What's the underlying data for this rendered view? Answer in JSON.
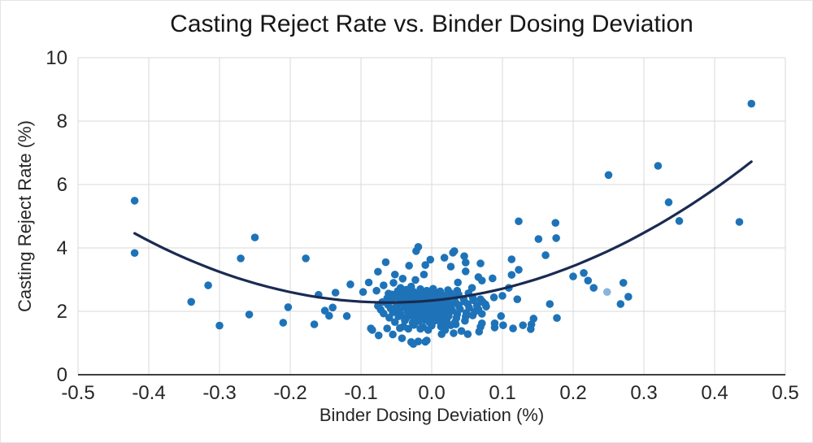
{
  "chart_data": {
    "type": "scatter",
    "title": "Casting Reject Rate vs. Binder Dosing Deviation",
    "xlabel": "Binder Dosing Deviation (%)",
    "ylabel": "Casting Reject Rate (%)",
    "xlim": [
      -0.5,
      0.5
    ],
    "ylim": [
      0,
      10
    ],
    "x_ticks": [
      -0.5,
      -0.4,
      -0.3,
      -0.2,
      -0.1,
      0.0,
      0.1,
      0.2,
      0.3,
      0.4,
      0.5
    ],
    "x_tick_labels": [
      "-0.5",
      "-0.4",
      "-0.3",
      "-0.2",
      "-0.1",
      "0.0",
      "0.1",
      "0.2",
      "0.3",
      "0.4",
      "0.5"
    ],
    "y_ticks": [
      0,
      2,
      4,
      6,
      8,
      10
    ],
    "y_tick_labels": [
      "0",
      "2",
      "4",
      "6",
      "8",
      "10"
    ],
    "grid": true,
    "legend": "none",
    "marker_color": "#1e73b8",
    "marker_color_light": "#8ab4dc",
    "trend_color": "#1a2b52",
    "gridline_color": "#d9d9d9",
    "axis_line_color": "#3f3f3f",
    "text_color": "#262626",
    "trendline": {
      "type": "polynomial",
      "degree": 2,
      "coefficients": {
        "a": 16.9,
        "b": 2.05,
        "c": 2.34
      },
      "x_range": [
        -0.42,
        0.452
      ]
    },
    "light_points": [
      [
        0.248,
        2.61
      ]
    ],
    "points": [
      [
        -0.42,
        5.49
      ],
      [
        -0.42,
        3.84
      ],
      [
        -0.34,
        2.3
      ],
      [
        -0.316,
        2.82
      ],
      [
        -0.3,
        1.55
      ],
      [
        -0.27,
        3.67
      ],
      [
        -0.258,
        1.9
      ],
      [
        -0.25,
        4.33
      ],
      [
        -0.21,
        1.64
      ],
      [
        -0.203,
        2.13
      ],
      [
        -0.178,
        3.67
      ],
      [
        -0.166,
        1.59
      ],
      [
        -0.16,
        2.52
      ],
      [
        -0.151,
        2.02
      ],
      [
        -0.145,
        1.86
      ],
      [
        -0.14,
        2.12
      ],
      [
        -0.136,
        2.59
      ],
      [
        -0.12,
        1.85
      ],
      [
        -0.115,
        2.85
      ],
      [
        -0.097,
        2.61
      ],
      [
        -0.089,
        2.91
      ],
      [
        -0.078,
        2.65
      ],
      [
        -0.076,
        3.25
      ],
      [
        -0.068,
        2.82
      ],
      [
        -0.065,
        3.55
      ],
      [
        -0.061,
        2.56
      ],
      [
        -0.054,
        2.9
      ],
      [
        -0.052,
        3.16
      ],
      [
        -0.044,
        2.74
      ],
      [
        -0.041,
        3.03
      ],
      [
        -0.032,
        3.44
      ],
      [
        -0.029,
        2.78
      ],
      [
        -0.023,
        2.99
      ],
      [
        -0.022,
        3.9
      ],
      [
        -0.019,
        4.03
      ],
      [
        -0.011,
        3.16
      ],
      [
        -0.009,
        3.46
      ],
      [
        -0.002,
        3.63
      ],
      [
        0.018,
        3.69
      ],
      [
        0.027,
        3.41
      ],
      [
        0.03,
        3.85
      ],
      [
        0.032,
        3.9
      ],
      [
        0.037,
        2.91
      ],
      [
        0.046,
        3.74
      ],
      [
        0.048,
        3.54
      ],
      [
        0.048,
        3.26
      ],
      [
        0.057,
        2.74
      ],
      [
        0.066,
        3.08
      ],
      [
        0.069,
        3.51
      ],
      [
        0.071,
        2.97
      ],
      [
        0.086,
        3.04
      ],
      [
        0.088,
        2.44
      ],
      [
        0.1,
        2.49
      ],
      [
        0.109,
        2.74
      ],
      [
        0.113,
        3.64
      ],
      [
        0.113,
        3.15
      ],
      [
        0.123,
        3.31
      ],
      [
        0.121,
        2.38
      ],
      [
        0.123,
        4.84
      ],
      [
        0.151,
        4.28
      ],
      [
        0.161,
        3.77
      ],
      [
        0.167,
        2.23
      ],
      [
        0.175,
        4.79
      ],
      [
        0.176,
        4.31
      ],
      [
        0.2,
        3.1
      ],
      [
        0.215,
        3.21
      ],
      [
        0.221,
        2.97
      ],
      [
        0.229,
        2.74
      ],
      [
        0.25,
        6.3
      ],
      [
        0.267,
        2.23
      ],
      [
        0.271,
        2.9
      ],
      [
        0.278,
        2.46
      ],
      [
        0.32,
        6.59
      ],
      [
        0.335,
        5.44
      ],
      [
        0.35,
        4.85
      ],
      [
        0.435,
        4.82
      ],
      [
        0.452,
        8.55
      ],
      [
        -0.086,
        1.46
      ],
      [
        -0.084,
        1.41
      ],
      [
        -0.075,
        1.24
      ],
      [
        -0.063,
        1.46
      ],
      [
        -0.055,
        1.27
      ],
      [
        -0.045,
        1.47
      ],
      [
        -0.042,
        1.15
      ],
      [
        -0.033,
        1.45
      ],
      [
        -0.029,
        1.03
      ],
      [
        -0.026,
        0.97
      ],
      [
        -0.019,
        1.05
      ],
      [
        -0.016,
        1.45
      ],
      [
        -0.009,
        1.04
      ],
      [
        -0.007,
        1.08
      ],
      [
        -0.005,
        1.41
      ],
      [
        0.014,
        1.28
      ],
      [
        0.019,
        1.41
      ],
      [
        0.022,
        1.62
      ],
      [
        0.031,
        1.31
      ],
      [
        0.034,
        1.59
      ],
      [
        0.042,
        1.38
      ],
      [
        0.051,
        1.28
      ],
      [
        0.067,
        1.36
      ],
      [
        0.069,
        1.51
      ],
      [
        0.071,
        1.62
      ],
      [
        0.071,
        1.92
      ],
      [
        0.077,
        2.15
      ],
      [
        0.089,
        1.49
      ],
      [
        0.089,
        1.62
      ],
      [
        0.098,
        1.85
      ],
      [
        0.101,
        1.56
      ],
      [
        0.115,
        1.46
      ],
      [
        0.129,
        1.56
      ],
      [
        0.14,
        1.44
      ],
      [
        0.141,
        1.59
      ],
      [
        0.144,
        1.77
      ],
      [
        0.177,
        1.79
      ],
      [
        -0.04,
        1.52
      ],
      [
        -0.025,
        1.57
      ],
      [
        -0.012,
        1.5
      ],
      [
        0.0,
        1.55
      ],
      [
        0.013,
        1.52
      ],
      [
        0.027,
        1.56
      ],
      [
        -0.052,
        1.66
      ],
      [
        -0.038,
        1.71
      ],
      [
        -0.027,
        1.64
      ],
      [
        -0.018,
        1.69
      ],
      [
        -0.01,
        1.73
      ],
      [
        -0.003,
        1.65
      ],
      [
        0.004,
        1.7
      ],
      [
        0.012,
        1.67
      ],
      [
        0.021,
        1.72
      ],
      [
        0.033,
        1.66
      ],
      [
        0.047,
        1.7
      ],
      [
        -0.06,
        1.8
      ],
      [
        -0.047,
        1.84
      ],
      [
        -0.036,
        1.79
      ],
      [
        -0.028,
        1.86
      ],
      [
        -0.02,
        1.81
      ],
      [
        -0.013,
        1.88
      ],
      [
        -0.006,
        1.78
      ],
      [
        0.0,
        1.83
      ],
      [
        0.007,
        1.87
      ],
      [
        0.015,
        1.8
      ],
      [
        0.024,
        1.85
      ],
      [
        0.035,
        1.79
      ],
      [
        0.048,
        1.83
      ],
      [
        0.058,
        1.87
      ],
      [
        -0.068,
        1.93
      ],
      [
        -0.055,
        1.97
      ],
      [
        -0.044,
        1.91
      ],
      [
        -0.034,
        1.99
      ],
      [
        -0.026,
        1.94
      ],
      [
        -0.019,
        2.0
      ],
      [
        -0.012,
        1.92
      ],
      [
        -0.005,
        1.96
      ],
      [
        0.001,
        1.9
      ],
      [
        0.008,
        1.98
      ],
      [
        0.016,
        1.93
      ],
      [
        0.025,
        1.97
      ],
      [
        0.036,
        1.91
      ],
      [
        0.049,
        1.95
      ],
      [
        0.061,
        1.99
      ],
      [
        -0.072,
        2.05
      ],
      [
        -0.058,
        2.09
      ],
      [
        -0.046,
        2.03
      ],
      [
        -0.037,
        2.11
      ],
      [
        -0.029,
        2.06
      ],
      [
        -0.022,
        2.12
      ],
      [
        -0.015,
        2.04
      ],
      [
        -0.008,
        2.08
      ],
      [
        -0.002,
        2.02
      ],
      [
        0.005,
        2.1
      ],
      [
        0.012,
        2.05
      ],
      [
        0.02,
        2.09
      ],
      [
        0.029,
        2.03
      ],
      [
        0.04,
        2.07
      ],
      [
        0.053,
        2.11
      ],
      [
        0.066,
        2.06
      ],
      [
        -0.076,
        2.17
      ],
      [
        -0.062,
        2.21
      ],
      [
        -0.05,
        2.15
      ],
      [
        -0.04,
        2.23
      ],
      [
        -0.031,
        2.18
      ],
      [
        -0.024,
        2.24
      ],
      [
        -0.017,
        2.16
      ],
      [
        -0.01,
        2.2
      ],
      [
        -0.004,
        2.14
      ],
      [
        0.003,
        2.22
      ],
      [
        0.01,
        2.17
      ],
      [
        0.018,
        2.21
      ],
      [
        0.027,
        2.15
      ],
      [
        0.038,
        2.19
      ],
      [
        0.051,
        2.23
      ],
      [
        0.064,
        2.18
      ],
      [
        0.076,
        2.22
      ],
      [
        -0.07,
        2.29
      ],
      [
        -0.057,
        2.33
      ],
      [
        -0.045,
        2.27
      ],
      [
        -0.036,
        2.35
      ],
      [
        -0.028,
        2.3
      ],
      [
        -0.021,
        2.36
      ],
      [
        -0.014,
        2.28
      ],
      [
        -0.007,
        2.32
      ],
      [
        0.0,
        2.26
      ],
      [
        0.007,
        2.34
      ],
      [
        0.015,
        2.29
      ],
      [
        0.024,
        2.33
      ],
      [
        0.034,
        2.27
      ],
      [
        0.046,
        2.31
      ],
      [
        0.059,
        2.35
      ],
      [
        0.072,
        2.3
      ],
      [
        -0.063,
        2.41
      ],
      [
        -0.051,
        2.45
      ],
      [
        -0.041,
        2.39
      ],
      [
        -0.032,
        2.47
      ],
      [
        -0.024,
        2.42
      ],
      [
        -0.016,
        2.48
      ],
      [
        -0.009,
        2.4
      ],
      [
        -0.002,
        2.44
      ],
      [
        0.006,
        2.38
      ],
      [
        0.014,
        2.46
      ],
      [
        0.023,
        2.41
      ],
      [
        0.033,
        2.45
      ],
      [
        0.045,
        2.39
      ],
      [
        0.058,
        2.43
      ],
      [
        -0.056,
        2.53
      ],
      [
        -0.044,
        2.57
      ],
      [
        -0.034,
        2.51
      ],
      [
        -0.025,
        2.59
      ],
      [
        -0.017,
        2.54
      ],
      [
        -0.009,
        2.6
      ],
      [
        -0.001,
        2.52
      ],
      [
        0.007,
        2.56
      ],
      [
        0.016,
        2.5
      ],
      [
        0.026,
        2.58
      ],
      [
        0.038,
        2.53
      ],
      [
        0.052,
        2.57
      ],
      [
        -0.048,
        2.64
      ],
      [
        -0.036,
        2.68
      ],
      [
        -0.026,
        2.62
      ],
      [
        -0.016,
        2.7
      ],
      [
        -0.007,
        2.65
      ],
      [
        0.002,
        2.71
      ],
      [
        0.012,
        2.63
      ],
      [
        0.023,
        2.67
      ],
      [
        0.036,
        2.65
      ],
      [
        0.069,
        2.38
      ]
    ]
  }
}
